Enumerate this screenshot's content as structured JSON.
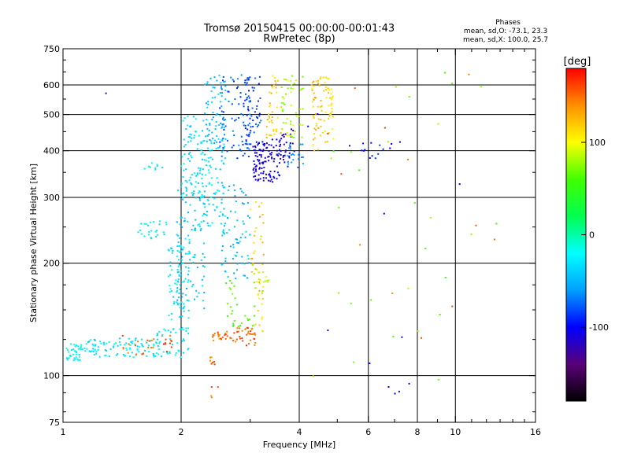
{
  "title_line1": "Tromsø 20150415 00:00:00-00:01:43",
  "title_line2": "RwPretec (8p)",
  "stats": {
    "heading": "Phases",
    "line_o": "mean, sd,O: -73.1, 23.3",
    "line_x": "mean, sd,X: 100.0, 25.7"
  },
  "colorbar": {
    "unit_label": "[deg]",
    "range": [
      -180,
      180
    ],
    "ticks": [
      {
        "value": 100,
        "label": "100"
      },
      {
        "value": 0,
        "label": "0"
      },
      {
        "value": -100,
        "label": "-100"
      }
    ],
    "stops": [
      "#000000",
      "#5a0078",
      "#0000ff",
      "#00a0ff",
      "#00ffff",
      "#00ff50",
      "#40ff00",
      "#ffff00",
      "#ff9000",
      "#ff0000"
    ]
  },
  "chart_data": {
    "type": "scatter",
    "xlabel": "Frequency [MHz]",
    "ylabel": "Stationary phase Virtual Height [km]",
    "x_scale": "log",
    "y_scale": "log",
    "xlim": [
      1,
      16
    ],
    "ylim": [
      75,
      750
    ],
    "x_ticks": [
      {
        "value": 1,
        "label": "1"
      },
      {
        "value": 2,
        "label": "2"
      },
      {
        "value": 4,
        "label": "4"
      },
      {
        "value": 6,
        "label": "6"
      },
      {
        "value": 8,
        "label": "8"
      },
      {
        "value": 10,
        "label": "10"
      },
      {
        "value": 16,
        "label": "16"
      }
    ],
    "x_gridlines": [
      2,
      4,
      6,
      8,
      10
    ],
    "y_ticks": [
      {
        "value": 75,
        "label": "75"
      },
      {
        "value": 100,
        "label": "100"
      },
      {
        "value": 200,
        "label": "200"
      },
      {
        "value": 300,
        "label": "300"
      },
      {
        "value": 400,
        "label": "400"
      },
      {
        "value": 500,
        "label": "500"
      },
      {
        "value": 600,
        "label": "600"
      },
      {
        "value": 750,
        "label": "750"
      }
    ],
    "y_gridlines": [
      100,
      200,
      300,
      400,
      500,
      600
    ],
    "grid": true,
    "point_groups": [
      {
        "x": [
          1.02,
          1.15
        ],
        "y": [
          110,
          122
        ],
        "phase": -20,
        "count": 40
      },
      {
        "x": [
          1.15,
          1.75
        ],
        "y": [
          112,
          126
        ],
        "phase": -30,
        "count": 90
      },
      {
        "x": [
          1.35,
          1.8
        ],
        "y": [
          113,
          130
        ],
        "phase": 150,
        "count": 20
      },
      {
        "x": [
          1.7,
          2.1
        ],
        "y": [
          112,
          135
        ],
        "phase": -25,
        "count": 50
      },
      {
        "x": [
          1.8,
          1.9
        ],
        "y": [
          115,
          130
        ],
        "phase": 160,
        "count": 10
      },
      {
        "x": [
          1.55,
          1.85
        ],
        "y": [
          230,
          260
        ],
        "phase": -25,
        "count": 25
      },
      {
        "x": [
          1.6,
          1.8
        ],
        "y": [
          355,
          375
        ],
        "phase": -20,
        "count": 10
      },
      {
        "x": [
          1.85,
          2.1
        ],
        "y": [
          140,
          240
        ],
        "phase": -30,
        "count": 70
      },
      {
        "x": [
          1.95,
          2.3
        ],
        "y": [
          150,
          330
        ],
        "phase": -40,
        "count": 110
      },
      {
        "x": [
          2.0,
          2.3
        ],
        "y": [
          300,
          500
        ],
        "phase": -30,
        "count": 70
      },
      {
        "x": [
          2.2,
          2.6
        ],
        "y": [
          250,
          430
        ],
        "phase": -30,
        "count": 80
      },
      {
        "x": [
          2.3,
          2.6
        ],
        "y": [
          400,
          640
        ],
        "phase": -45,
        "count": 70
      },
      {
        "x": [
          2.35,
          2.45
        ],
        "y": [
          107,
          112
        ],
        "phase": 150,
        "count": 8
      },
      {
        "x": [
          2.4,
          2.75
        ],
        "y": [
          124,
          132
        ],
        "phase": 150,
        "count": 25
      },
      {
        "x": [
          2.5,
          3.0
        ],
        "y": [
          380,
          640
        ],
        "phase": -75,
        "count": 80
      },
      {
        "x": [
          2.5,
          3.0
        ],
        "y": [
          180,
          330
        ],
        "phase": -45,
        "count": 80
      },
      {
        "x": [
          2.75,
          3.1
        ],
        "y": [
          120,
          135
        ],
        "phase": 155,
        "count": 35
      },
      {
        "x": [
          2.6,
          3.1
        ],
        "y": [
          135,
          180
        ],
        "phase": 60,
        "count": 30
      },
      {
        "x": [
          3.0,
          3.25
        ],
        "y": [
          130,
          300
        ],
        "phase": 120,
        "count": 40
      },
      {
        "x": [
          3.0,
          3.35
        ],
        "y": [
          160,
          200
        ],
        "phase": 90,
        "count": 20
      },
      {
        "x": [
          2.9,
          3.2
        ],
        "y": [
          400,
          640
        ],
        "phase": -85,
        "count": 60
      },
      {
        "x": [
          3.05,
          3.6
        ],
        "y": [
          330,
          430
        ],
        "phase": -110,
        "count": 110
      },
      {
        "x": [
          3.3,
          3.6
        ],
        "y": [
          430,
          640
        ],
        "phase": 120,
        "count": 40
      },
      {
        "x": [
          3.5,
          3.9
        ],
        "y": [
          360,
          460
        ],
        "phase": -115,
        "count": 30
      },
      {
        "x": [
          3.6,
          4.1
        ],
        "y": [
          430,
          640
        ],
        "phase": 80,
        "count": 50
      },
      {
        "x": [
          3.7,
          4.1
        ],
        "y": [
          360,
          420
        ],
        "phase": -60,
        "count": 20
      },
      {
        "x": [
          4.3,
          4.6
        ],
        "y": [
          400,
          640
        ],
        "phase": 120,
        "count": 45
      },
      {
        "x": [
          4.6,
          4.95
        ],
        "y": [
          420,
          640
        ],
        "phase": 110,
        "count": 40
      },
      {
        "x": [
          5.2,
          6.9
        ],
        "y": [
          380,
          420
        ],
        "phase": -100,
        "count": 14
      },
      {
        "x": [
          4.2,
          13.0
        ],
        "y": [
          90,
          660
        ],
        "phase": 70,
        "count": 28
      },
      {
        "x": [
          4.2,
          13.0
        ],
        "y": [
          90,
          660
        ],
        "phase": -110,
        "count": 10
      },
      {
        "x": [
          4.2,
          13.0
        ],
        "y": [
          90,
          660
        ],
        "phase": 150,
        "count": 12
      },
      {
        "x": [
          2.35,
          2.5
        ],
        "y": [
          86,
          95
        ],
        "phase": 150,
        "count": 4
      },
      {
        "x": [
          1.28,
          1.3
        ],
        "y": [
          567,
          573
        ],
        "phase": -110,
        "count": 1
      },
      {
        "x": [
          7.0,
          7.2
        ],
        "y": [
          86,
          92
        ],
        "phase": -100,
        "count": 2
      }
    ]
  }
}
